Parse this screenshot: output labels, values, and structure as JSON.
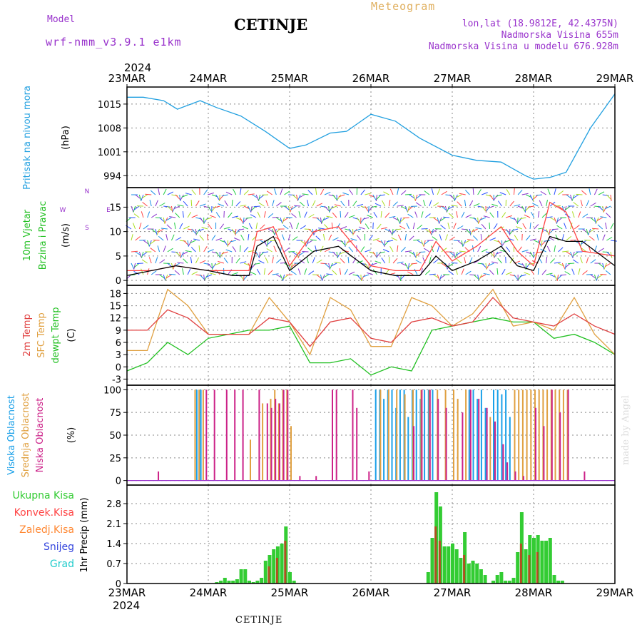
{
  "header": {
    "model_label": "Model",
    "model_name": "wrf-nmm_v3.9.1 e1km",
    "title": "CETINJE",
    "meteogram": "Meteogram",
    "lonlat": "lon,lat (18.9812E, 42.4375N)",
    "elevation": "Nadmorska Visina 655m",
    "model_elevation": "Nadmorska Visina u modelu 676.928m",
    "footer": "CETINJE",
    "credit": "made by Angel",
    "year": "2024"
  },
  "colors": {
    "pressure": "#22a0e0",
    "wind_speed": "#000000",
    "wind_gust": "#ff4444",
    "temp2m": "#e04040",
    "sfc_temp": "#e0a040",
    "dewpt": "#22c022",
    "cloud_high": "#1aa0e8",
    "cloud_mid": "#e0a040",
    "cloud_low": "#cc2288",
    "precip_total": "#33cc33",
    "precip_conv": "#b05020",
    "axis_purple": "#9933cc"
  },
  "x_axis": {
    "labels": [
      "23MAR",
      "24MAR",
      "25MAR",
      "26MAR",
      "27MAR",
      "28MAR",
      "29MAR"
    ]
  },
  "chart_data": [
    {
      "type": "line",
      "panel": "pressure",
      "ylabel": [
        "Pritisak na nivou mora",
        "(hPa)"
      ],
      "yticks": [
        994,
        1001,
        1008,
        1015
      ],
      "ylim": [
        990.5,
        1020
      ],
      "x_days": [
        0,
        0.2,
        0.45,
        0.62,
        0.9,
        1.1,
        1.4,
        1.7,
        2.0,
        2.2,
        2.5,
        2.7,
        3.0,
        3.3,
        3.6,
        4.0,
        4.3,
        4.6,
        4.9,
        5.0,
        5.2,
        5.4,
        5.7,
        6.0
      ],
      "series": [
        {
          "values": [
            1017,
            1017,
            1016,
            1013.5,
            1016,
            1014,
            1011.5,
            1007,
            1002,
            1003,
            1006.5,
            1007,
            1012,
            1010,
            1005,
            1000,
            998.5,
            998,
            994,
            993,
            993.5,
            995,
            1008,
            1018
          ]
        }
      ]
    },
    {
      "type": "line",
      "panel": "wind",
      "ylabel": [
        "10m Vjetar",
        "Brzina i Pravac",
        "(m/s)"
      ],
      "compass": [
        "N",
        "E",
        "W",
        "S"
      ],
      "yticks": [
        0,
        5,
        10,
        15
      ],
      "ylim": [
        -1,
        19
      ],
      "x_days": [
        0,
        0.3,
        0.6,
        1.0,
        1.3,
        1.5,
        1.6,
        1.8,
        2.0,
        2.3,
        2.6,
        3.0,
        3.3,
        3.6,
        3.8,
        4.0,
        4.3,
        4.6,
        4.8,
        5.0,
        5.2,
        5.4,
        5.6,
        6.0
      ],
      "series": [
        {
          "name": "speed",
          "values": [
            1,
            2,
            3,
            2,
            1,
            1,
            7,
            9,
            2,
            6,
            7,
            2,
            1,
            1,
            5,
            2,
            4,
            7,
            3,
            2,
            9,
            8,
            8,
            3
          ]
        },
        {
          "name": "gust",
          "values": [
            2,
            2,
            3,
            2,
            2,
            2,
            10,
            11,
            3,
            10,
            11,
            3,
            2,
            2,
            8,
            4,
            7,
            11,
            6,
            3,
            16,
            14,
            6,
            5
          ]
        }
      ]
    },
    {
      "type": "line",
      "panel": "temperature",
      "ylabel": [
        "2m Temp",
        "SFC Temp",
        "dewpt Temp",
        "(C)"
      ],
      "yticks": [
        -3,
        0,
        3,
        6,
        9,
        12,
        15,
        18
      ],
      "ylim": [
        -4.5,
        20
      ],
      "x_days": [
        0,
        0.25,
        0.5,
        0.75,
        1.0,
        1.25,
        1.5,
        1.75,
        2.0,
        2.25,
        2.5,
        2.75,
        3.0,
        3.25,
        3.5,
        3.75,
        4.0,
        4.25,
        4.5,
        4.75,
        5.0,
        5.25,
        5.5,
        5.75,
        6.0
      ],
      "series": [
        {
          "name": "2m Temp",
          "values": [
            9,
            9,
            14,
            12,
            8,
            8,
            8,
            12,
            11,
            5,
            11,
            12,
            7,
            6,
            11,
            12,
            10,
            11,
            17,
            12,
            11,
            10,
            13,
            10,
            8
          ]
        },
        {
          "name": "SFC Temp",
          "values": [
            4,
            4,
            19,
            15,
            8,
            8,
            8,
            17,
            11,
            3,
            17,
            14,
            5,
            5,
            17,
            15,
            10,
            13,
            19,
            10,
            11,
            9,
            17,
            8,
            3
          ]
        },
        {
          "name": "dewpt Temp",
          "values": [
            -1,
            1,
            6,
            3,
            7,
            8,
            9,
            9,
            10,
            1,
            1,
            2,
            -2,
            0,
            -1,
            9,
            10,
            11,
            12,
            11,
            11,
            7,
            8,
            6,
            3
          ]
        }
      ]
    },
    {
      "type": "bar",
      "panel": "cloud",
      "ylabel": [
        "Visoka Oblacnost",
        "Srednja Oblacnost",
        "Niska Oblacnost",
        "(%)"
      ],
      "yticks": [
        0,
        25,
        50,
        75,
        100
      ],
      "ylim": [
        -5,
        105
      ],
      "series": [
        {
          "name": "Visoka Oblacnost",
          "x_days": [
            0.85,
            0.88,
            0.9,
            3.05,
            3.1,
            3.15,
            3.2,
            3.25,
            3.3,
            3.35,
            3.4,
            3.45,
            3.5,
            3.55,
            3.6,
            3.65,
            3.7,
            3.75,
            4.2,
            4.25,
            4.3,
            4.35,
            4.4,
            4.5,
            4.55,
            4.6,
            4.65,
            4.7
          ],
          "values": [
            100,
            100,
            100,
            100,
            100,
            90,
            100,
            100,
            80,
            100,
            100,
            70,
            100,
            100,
            90,
            100,
            100,
            100,
            100,
            100,
            90,
            100,
            80,
            100,
            100,
            95,
            100,
            70
          ]
        },
        {
          "name": "Srednja Oblacnost",
          "x_days": [
            0.82,
            0.87,
            0.92,
            1.5,
            1.65,
            1.75,
            1.8,
            1.85,
            1.9,
            1.95,
            2.0,
            3.1,
            3.2,
            3.3,
            3.4,
            3.5,
            3.6,
            3.7,
            3.8,
            3.9,
            4.0,
            4.05,
            4.15,
            4.45,
            4.75,
            4.8,
            4.85,
            4.9,
            4.95,
            5.0,
            5.05,
            5.1,
            5.15,
            5.2,
            5.25,
            5.3,
            5.35,
            5.4
          ],
          "values": [
            100,
            100,
            100,
            45,
            85,
            90,
            100,
            85,
            100,
            100,
            60,
            100,
            100,
            100,
            95,
            100,
            100,
            100,
            100,
            100,
            100,
            90,
            100,
            70,
            100,
            100,
            100,
            100,
            100,
            100,
            100,
            100,
            100,
            100,
            100,
            100,
            100,
            100
          ]
        },
        {
          "name": "Niska Oblacnost",
          "x_days": [
            0.36,
            0.95,
            1.05,
            1.2,
            1.3,
            1.4,
            1.6,
            1.7,
            1.75,
            1.8,
            1.85,
            1.9,
            1.95,
            2.1,
            2.3,
            2.5,
            2.55,
            2.75,
            2.8,
            2.95,
            3.5,
            3.6,
            3.7,
            3.8,
            3.9,
            4.1,
            4.2,
            4.3,
            4.4,
            4.5,
            4.6,
            4.65,
            4.75,
            4.85,
            5.0,
            5.1,
            5.2,
            5.3,
            5.4,
            5.6
          ],
          "values": [
            10,
            100,
            100,
            100,
            100,
            100,
            100,
            85,
            80,
            90,
            85,
            100,
            100,
            5,
            5,
            100,
            100,
            100,
            80,
            10,
            60,
            100,
            100,
            90,
            80,
            75,
            100,
            90,
            80,
            65,
            40,
            20,
            10,
            5,
            80,
            60,
            100,
            75,
            100,
            10
          ]
        }
      ]
    },
    {
      "type": "bar",
      "panel": "precip",
      "ylabel": [
        "1hr Precip (mm)"
      ],
      "legend": [
        "Ukupna Kisa",
        "Konvek.Kisa",
        "Zaledj.Kisa",
        "Snijeg",
        "Grad"
      ],
      "yticks": [
        0,
        0.7,
        1.4,
        2.1,
        2.8
      ],
      "ylim": [
        0,
        3.45
      ],
      "series": [
        {
          "name": "Ukupna Kisa",
          "x_days": [
            1.1,
            1.15,
            1.2,
            1.25,
            1.3,
            1.35,
            1.4,
            1.45,
            1.5,
            1.55,
            1.6,
            1.65,
            1.7,
            1.75,
            1.8,
            1.85,
            1.9,
            1.95,
            2.0,
            2.05,
            3.7,
            3.75,
            3.8,
            3.85,
            3.9,
            3.95,
            4.0,
            4.05,
            4.1,
            4.15,
            4.2,
            4.25,
            4.3,
            4.35,
            4.4,
            4.5,
            4.55,
            4.6,
            4.65,
            4.7,
            4.75,
            4.8,
            4.85,
            4.9,
            4.95,
            5.0,
            5.05,
            5.1,
            5.15,
            5.2,
            5.25,
            5.3,
            5.35
          ],
          "values": [
            0.05,
            0.1,
            0.2,
            0.1,
            0.1,
            0.15,
            0.5,
            0.5,
            0.1,
            0.05,
            0.1,
            0.2,
            0.8,
            1.0,
            1.2,
            1.3,
            1.4,
            2.0,
            0.4,
            0.1,
            0.4,
            1.6,
            3.2,
            2.7,
            1.3,
            1.3,
            1.4,
            1.2,
            0.9,
            1.8,
            0.7,
            0.8,
            0.7,
            0.5,
            0.3,
            0.1,
            0.3,
            0.4,
            0.1,
            0.1,
            0.2,
            1.1,
            2.5,
            1.2,
            1.7,
            1.6,
            1.7,
            1.5,
            1.5,
            1.6,
            0.3,
            0.1,
            0.1
          ]
        },
        {
          "name": "Konvek.Kisa",
          "x_days": [
            1.75,
            1.85,
            1.95,
            3.8,
            3.85,
            4.15,
            4.85,
            4.95,
            5.05
          ],
          "values": [
            0.6,
            0.9,
            1.5,
            2.0,
            1.5,
            1.0,
            1.4,
            1.0,
            1.1
          ]
        }
      ]
    }
  ]
}
